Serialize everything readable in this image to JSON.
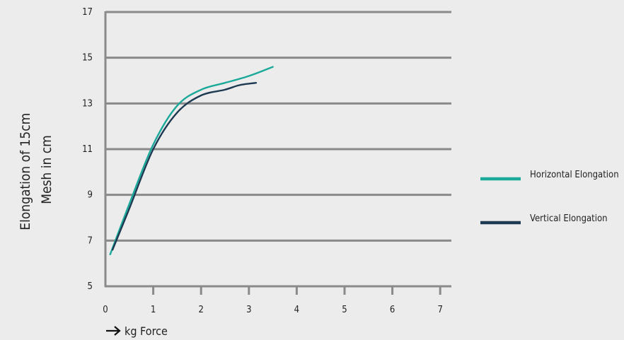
{
  "chart_data": {
    "type": "line",
    "title": "",
    "ylabel_lines": [
      "Elongation of 15cm",
      "Mesh in cm"
    ],
    "xlabel": "kg Force",
    "xlim": [
      0,
      7
    ],
    "ylim": [
      5,
      17
    ],
    "x_ticks": [
      0,
      1,
      2,
      3,
      4,
      5,
      6,
      7
    ],
    "y_ticks": [
      5,
      7,
      9,
      11,
      13,
      15,
      17
    ],
    "grid": true,
    "legend_position": "right",
    "series": [
      {
        "name": "Horizontal Elongation",
        "color": "#1ba99a",
        "points": [
          [
            0.1,
            6.4
          ],
          [
            0.5,
            8.6
          ],
          [
            1.0,
            11.2
          ],
          [
            1.5,
            12.9
          ],
          [
            2.0,
            13.6
          ],
          [
            2.5,
            13.9
          ],
          [
            3.0,
            14.2
          ],
          [
            3.5,
            14.6
          ]
        ]
      },
      {
        "name": "Vertical Elongation",
        "color": "#1d3a52",
        "points": [
          [
            0.15,
            6.6
          ],
          [
            0.5,
            8.4
          ],
          [
            1.0,
            11.0
          ],
          [
            1.5,
            12.6
          ],
          [
            2.0,
            13.35
          ],
          [
            2.5,
            13.6
          ],
          [
            2.8,
            13.8
          ],
          [
            3.15,
            13.9
          ]
        ]
      }
    ]
  }
}
